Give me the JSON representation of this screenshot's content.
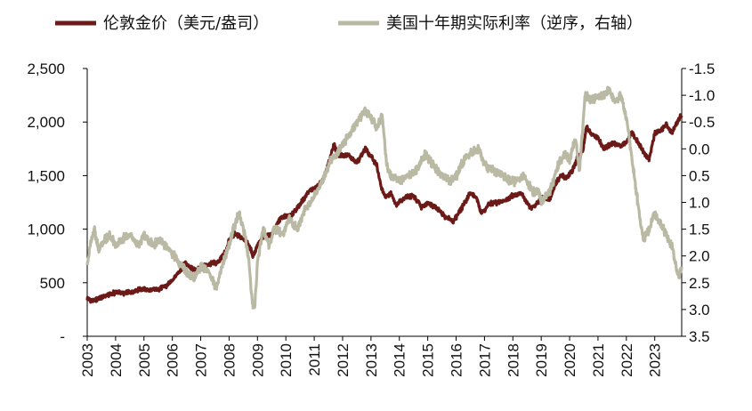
{
  "chart_data": {
    "type": "line",
    "title": "",
    "colors": {
      "gold": "#6b1a17",
      "real_rate": "#b9b9a4",
      "axis": "#000000"
    },
    "legend": [
      {
        "key": "gold",
        "label": "伦敦金价（美元/盎司）",
        "placement": "top-left"
      },
      {
        "key": "real_rate",
        "label": "美国十年期实际利率（逆序，右轴）",
        "placement": "top-right"
      }
    ],
    "x_axis": {
      "range": [
        2003.0,
        2023.95
      ],
      "ticks": [
        "2003",
        "2004",
        "2005",
        "2006",
        "2007",
        "2008",
        "2009",
        "2010",
        "2011",
        "2012",
        "2013",
        "2014",
        "2015",
        "2016",
        "2017",
        "2018",
        "2019",
        "2020",
        "2021",
        "2022",
        "2023"
      ]
    },
    "y_left": {
      "label": "",
      "range": [
        0,
        2500
      ],
      "ticks": [
        0,
        500,
        1000,
        1500,
        2000,
        2500
      ],
      "tick_labels": [
        "-",
        "500",
        "1,000",
        "1,500",
        "2,000",
        "2,500"
      ]
    },
    "y_right": {
      "label": "",
      "inverted": true,
      "range": [
        -1.5,
        3.5
      ],
      "ticks": [
        -1.5,
        -1.0,
        -0.5,
        0.0,
        0.5,
        1.0,
        1.5,
        2.0,
        2.5,
        3.0,
        3.5
      ],
      "tick_labels": [
        "-1.5",
        "-1.0",
        "-0.5",
        "0.0",
        "0.5",
        "1.0",
        "1.5",
        "2.0",
        "2.5",
        "3.0",
        "3.5"
      ]
    },
    "series": [
      {
        "name": "伦敦金价（美元/盎司）",
        "key": "gold",
        "axis": "left",
        "x": [
          2003.0,
          2003.2,
          2003.45,
          2003.7,
          2004.0,
          2004.3,
          2004.6,
          2004.9,
          2005.2,
          2005.5,
          2005.8,
          2006.0,
          2006.3,
          2006.45,
          2006.6,
          2006.8,
          2007.0,
          2007.3,
          2007.6,
          2007.9,
          2008.0,
          2008.2,
          2008.5,
          2008.7,
          2008.85,
          2009.0,
          2009.2,
          2009.5,
          2009.8,
          2009.95,
          2010.2,
          2010.5,
          2010.8,
          2011.0,
          2011.3,
          2011.55,
          2011.7,
          2011.8,
          2012.0,
          2012.2,
          2012.5,
          2012.8,
          2013.0,
          2013.2,
          2013.35,
          2013.5,
          2013.7,
          2013.9,
          2014.2,
          2014.5,
          2014.8,
          2015.0,
          2015.3,
          2015.6,
          2015.9,
          2016.2,
          2016.5,
          2016.7,
          2016.9,
          2017.2,
          2017.5,
          2017.8,
          2018.0,
          2018.3,
          2018.6,
          2018.8,
          2019.0,
          2019.3,
          2019.5,
          2019.7,
          2019.9,
          2020.1,
          2020.25,
          2020.45,
          2020.6,
          2020.8,
          2021.0,
          2021.2,
          2021.5,
          2021.8,
          2022.0,
          2022.2,
          2022.4,
          2022.6,
          2022.8,
          2023.0,
          2023.2,
          2023.4,
          2023.6,
          2023.75,
          2023.9,
          2023.95
        ],
        "y": [
          350,
          330,
          360,
          380,
          410,
          400,
          420,
          440,
          430,
          440,
          470,
          530,
          620,
          690,
          640,
          620,
          640,
          670,
          690,
          800,
          900,
          950,
          920,
          850,
          750,
          850,
          930,
          950,
          1100,
          1120,
          1130,
          1230,
          1350,
          1380,
          1450,
          1650,
          1800,
          1700,
          1680,
          1700,
          1620,
          1750,
          1680,
          1600,
          1400,
          1300,
          1330,
          1230,
          1300,
          1310,
          1200,
          1250,
          1200,
          1120,
          1070,
          1200,
          1340,
          1300,
          1150,
          1240,
          1250,
          1280,
          1320,
          1330,
          1200,
          1220,
          1290,
          1280,
          1420,
          1500,
          1480,
          1550,
          1650,
          1720,
          1950,
          1880,
          1850,
          1750,
          1800,
          1780,
          1810,
          1900,
          1820,
          1720,
          1650,
          1900,
          1920,
          1980,
          1900,
          1980,
          2050,
          2060
        ]
      },
      {
        "name": "美国十年期实际利率（逆序，右轴）",
        "key": "real_rate",
        "axis": "right",
        "x": [
          2003.0,
          2003.1,
          2003.25,
          2003.4,
          2003.6,
          2003.8,
          2004.0,
          2004.2,
          2004.5,
          2004.8,
          2005.0,
          2005.3,
          2005.6,
          2005.9,
          2006.2,
          2006.5,
          2006.8,
          2007.0,
          2007.3,
          2007.55,
          2007.8,
          2008.0,
          2008.15,
          2008.35,
          2008.55,
          2008.7,
          2008.82,
          2008.9,
          2009.0,
          2009.2,
          2009.4,
          2009.6,
          2009.9,
          2010.1,
          2010.4,
          2010.7,
          2011.0,
          2011.3,
          2011.6,
          2011.8,
          2012.0,
          2012.3,
          2012.6,
          2012.8,
          2013.0,
          2013.2,
          2013.4,
          2013.55,
          2013.7,
          2014.0,
          2014.3,
          2014.6,
          2014.9,
          2015.2,
          2015.5,
          2015.8,
          2016.0,
          2016.3,
          2016.5,
          2016.8,
          2017.0,
          2017.3,
          2017.6,
          2017.9,
          2018.1,
          2018.4,
          2018.7,
          2018.9,
          2019.0,
          2019.3,
          2019.6,
          2019.8,
          2020.0,
          2020.2,
          2020.35,
          2020.55,
          2020.75,
          2021.0,
          2021.2,
          2021.4,
          2021.6,
          2021.8,
          2022.0,
          2022.15,
          2022.3,
          2022.45,
          2022.6,
          2022.8,
          2023.0,
          2023.2,
          2023.4,
          2023.6,
          2023.75,
          2023.85,
          2023.95
        ],
        "y": [
          2.2,
          1.8,
          1.5,
          1.9,
          1.7,
          1.6,
          1.8,
          1.7,
          1.6,
          1.8,
          1.6,
          1.8,
          1.7,
          1.9,
          2.1,
          2.3,
          2.4,
          2.2,
          2.3,
          2.6,
          2.1,
          1.8,
          1.5,
          1.2,
          1.6,
          2.1,
          2.9,
          3.0,
          2.1,
          1.5,
          1.8,
          1.5,
          1.6,
          1.3,
          1.5,
          1.1,
          0.9,
          0.6,
          0.2,
          0.1,
          -0.1,
          -0.3,
          -0.6,
          -0.7,
          -0.6,
          -0.4,
          -0.6,
          0.3,
          0.5,
          0.6,
          0.5,
          0.4,
          0.1,
          0.3,
          0.5,
          0.6,
          0.5,
          0.2,
          0.1,
          0.0,
          0.3,
          0.4,
          0.5,
          0.6,
          0.6,
          0.5,
          0.8,
          0.8,
          1.0,
          0.8,
          0.3,
          0.1,
          0.2,
          -0.2,
          0.4,
          -1.0,
          -0.9,
          -1.0,
          -1.0,
          -1.1,
          -0.9,
          -1.0,
          -0.6,
          0.0,
          0.6,
          1.2,
          1.7,
          1.5,
          1.2,
          1.4,
          1.6,
          1.8,
          2.2,
          2.4,
          2.2
        ]
      }
    ]
  }
}
